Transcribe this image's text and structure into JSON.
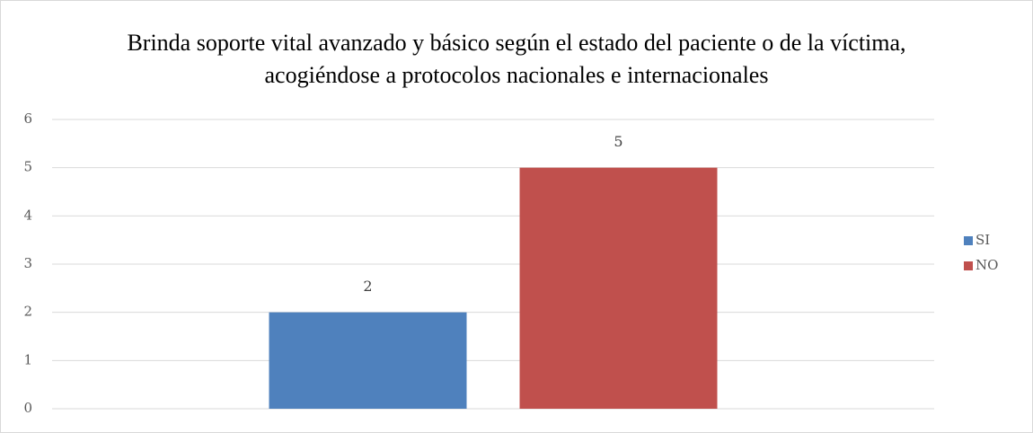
{
  "chart_data": {
    "type": "bar",
    "title": "Brinda soporte vital avanzado y básico según el estado del paciente o de la víctima, acogiéndose a protocolos nacionales e internacionales",
    "categories": [
      null
    ],
    "series": [
      {
        "name": "SI",
        "color": "#4f81bd",
        "values": [
          2
        ]
      },
      {
        "name": "NO",
        "color": "#c0504d",
        "values": [
          5
        ]
      }
    ],
    "ylim": [
      0,
      6
    ],
    "yticks": [
      0,
      1,
      2,
      3,
      4,
      5,
      6
    ],
    "grid": true,
    "legend": "right"
  }
}
